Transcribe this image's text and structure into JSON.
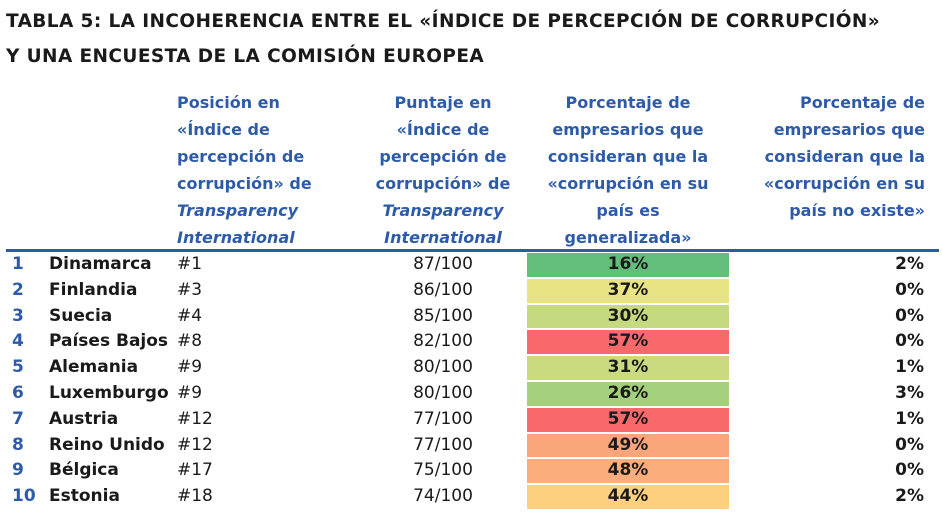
{
  "title": {
    "line1": "TABLA 5: LA INCOHERENCIA ENTRE EL «ÍNDICE DE PERCEPCIÓN DE CORRUPCIÓN»",
    "line2": "Y UNA ENCUESTA DE LA COMISIÓN EUROPEA"
  },
  "headers": {
    "position": {
      "l1": "Posición en",
      "l2": "«Índice de",
      "l3": "percepción de",
      "l4": "corrupción» de",
      "l5": "Transparency",
      "l6": "International"
    },
    "score": {
      "l1": "Puntaje en",
      "l2": "«Índice de",
      "l3": "percepción de",
      "l4": "corrupción» de",
      "l5": "Transparency",
      "l6": "International"
    },
    "widespread": {
      "l1": "Porcentaje de",
      "l2": "empresarios que",
      "l3": "consideran que la",
      "l4": "«corrupción en su",
      "l5": "país es",
      "l6": "generalizada»"
    },
    "nonexistent": {
      "l1": "Porcentaje de",
      "l2": "empresarios que",
      "l3": "consideran que la",
      "l4": "«corrupción en su",
      "l5": "país no existe»"
    }
  },
  "colors": {
    "header_text": "#2e5ba8",
    "rule": "#2e5ba8",
    "rank_text": "#2e5ba8",
    "body_text": "#1a1a1a"
  },
  "rows": [
    {
      "rank": "1",
      "country": "Dinamarca",
      "position": "#1",
      "score": "87/100",
      "widespread": "16%",
      "widespread_color": "#63be7b",
      "nonexistent": "2%"
    },
    {
      "rank": "2",
      "country": "Finlandia",
      "position": "#3",
      "score": "86/100",
      "widespread": "37%",
      "widespread_color": "#e8e383",
      "nonexistent": "0%"
    },
    {
      "rank": "3",
      "country": "Suecia",
      "position": "#4",
      "score": "85/100",
      "widespread": "30%",
      "widespread_color": "#c4d980",
      "nonexistent": "0%"
    },
    {
      "rank": "4",
      "country": "Países Bajos",
      "position": "#8",
      "score": "82/100",
      "widespread": "57%",
      "widespread_color": "#f8696b",
      "nonexistent": "0%"
    },
    {
      "rank": "5",
      "country": "Alemania",
      "position": "#9",
      "score": "80/100",
      "widespread": "31%",
      "widespread_color": "#c9da81",
      "nonexistent": "1%"
    },
    {
      "rank": "6",
      "country": "Luxemburgo",
      "position": "#9",
      "score": "80/100",
      "widespread": "26%",
      "widespread_color": "#a4d07d",
      "nonexistent": "3%"
    },
    {
      "rank": "7",
      "country": "Austria",
      "position": "#12",
      "score": "77/100",
      "widespread": "57%",
      "widespread_color": "#f8696b",
      "nonexistent": "1%"
    },
    {
      "rank": "8",
      "country": "Reino Unido",
      "position": "#12",
      "score": "77/100",
      "widespread": "49%",
      "widespread_color": "#fba67a",
      "nonexistent": "0%"
    },
    {
      "rank": "9",
      "country": "Bélgica",
      "position": "#17",
      "score": "75/100",
      "widespread": "48%",
      "widespread_color": "#fbac7b",
      "nonexistent": "0%"
    },
    {
      "rank": "10",
      "country": "Estonia",
      "position": "#18",
      "score": "74/100",
      "widespread": "44%",
      "widespread_color": "#fdd07f",
      "nonexistent": "2%"
    }
  ]
}
